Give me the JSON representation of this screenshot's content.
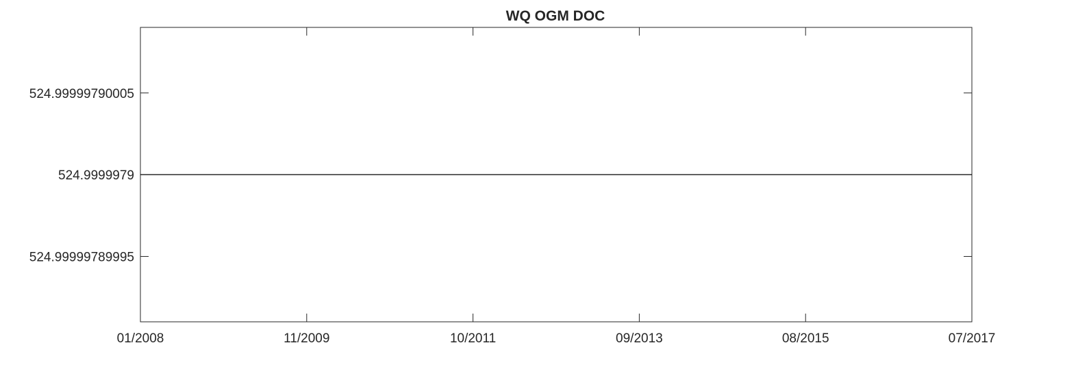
{
  "chart_data": {
    "type": "line",
    "title": "WQ OGM DOC",
    "xlabel": "",
    "ylabel": "",
    "x_tick_labels": [
      "01/2008",
      "11/2009",
      "10/2011",
      "09/2013",
      "08/2015",
      "07/2017"
    ],
    "y_tick_labels": [
      "524.99999790005",
      "524.9999979",
      "524.99999789995"
    ],
    "y_tick_values": [
      524.99999790005,
      524.9999979,
      524.99999789995
    ],
    "xlim": [
      "2008-01-01",
      "2017-07-01"
    ],
    "ylim": [
      524.99999789991,
      524.99999790009
    ],
    "grid": false,
    "series": [
      {
        "x": [
          "2008-01-01",
          "2017-07-01"
        ],
        "y": [
          524.9999979,
          524.9999979
        ],
        "color": "#000000"
      }
    ]
  }
}
